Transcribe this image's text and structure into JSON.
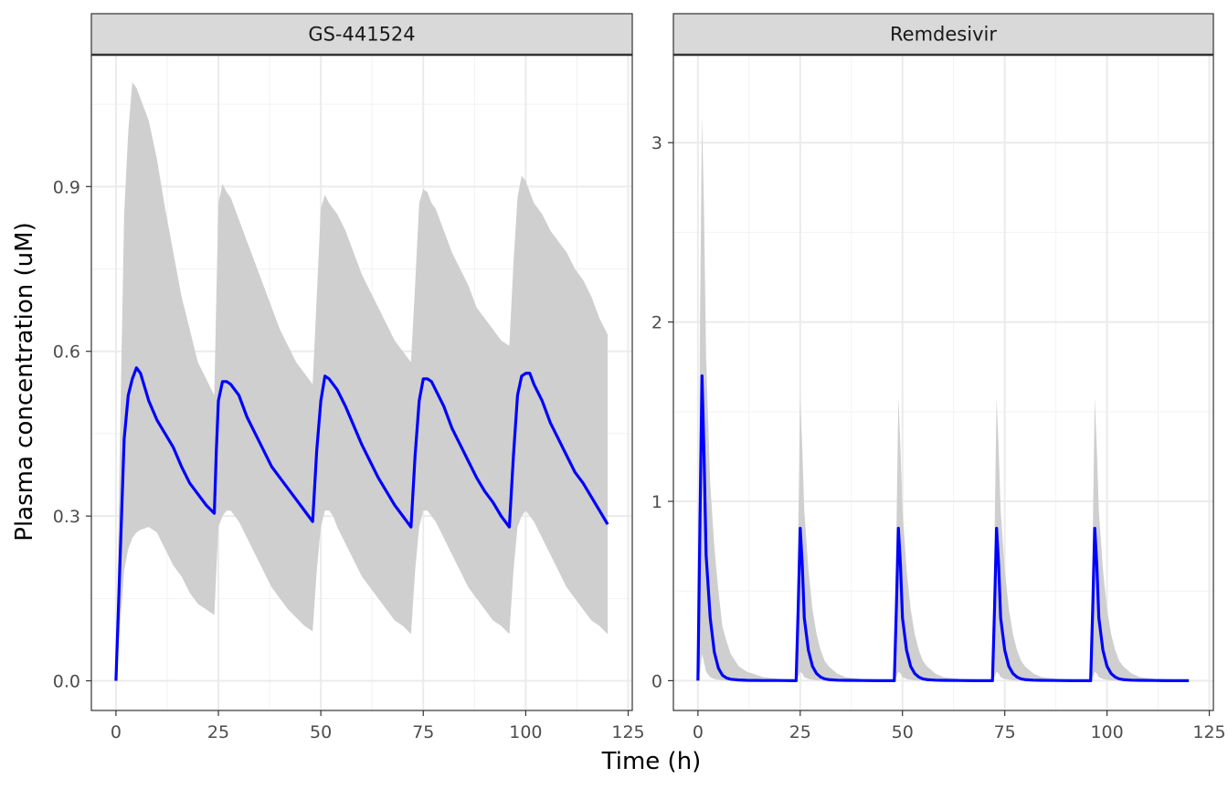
{
  "chart_data": {
    "type": "line",
    "xlabel": "Time (h)",
    "ylabel": "Plasma concentration (uM)",
    "grid": true,
    "legend": "none",
    "colors": {
      "line": "#0000ff",
      "ribbon": "#cfcfcf"
    },
    "panels": [
      {
        "title": "GS-441524",
        "xlim": [
          -6,
          126
        ],
        "ylim": [
          -0.054,
          1.14
        ],
        "x_ticks": [
          0,
          25,
          50,
          75,
          100,
          125
        ],
        "x_tick_labels": [
          "0",
          "25",
          "50",
          "75",
          "100",
          "125"
        ],
        "y_ticks": [
          0,
          0.3,
          0.6,
          0.9
        ],
        "y_tick_labels": [
          "0.0",
          "0.3",
          "0.6",
          "0.9"
        ],
        "series": [
          {
            "x": [
              0,
              1,
              2,
              3,
              4,
              5,
              6,
              8,
              10,
              12,
              14,
              16,
              18,
              20,
              22,
              24,
              24.5,
              25,
              26,
              27,
              28,
              29,
              30,
              32,
              34,
              36,
              38,
              40,
              42,
              44,
              46,
              48,
              49,
              50,
              51,
              52,
              53,
              54,
              56,
              58,
              60,
              62,
              64,
              66,
              68,
              70,
              72,
              73,
              74,
              75,
              76,
              77,
              78,
              80,
              82,
              84,
              86,
              88,
              90,
              92,
              94,
              96,
              97,
              98,
              99,
              100,
              101,
              102,
              104,
              106,
              108,
              110,
              112,
              114,
              116,
              118,
              120
            ],
            "y": [
              0.0,
              0.22,
              0.44,
              0.52,
              0.55,
              0.57,
              0.56,
              0.51,
              0.475,
              0.45,
              0.425,
              0.39,
              0.36,
              0.34,
              0.32,
              0.305,
              0.42,
              0.51,
              0.545,
              0.545,
              0.54,
              0.53,
              0.52,
              0.48,
              0.45,
              0.42,
              0.39,
              0.37,
              0.35,
              0.33,
              0.31,
              0.29,
              0.42,
              0.51,
              0.555,
              0.55,
              0.54,
              0.53,
              0.5,
              0.465,
              0.43,
              0.4,
              0.37,
              0.345,
              0.32,
              0.3,
              0.28,
              0.41,
              0.51,
              0.55,
              0.55,
              0.545,
              0.53,
              0.5,
              0.46,
              0.43,
              0.4,
              0.37,
              0.345,
              0.325,
              0.3,
              0.28,
              0.41,
              0.52,
              0.555,
              0.56,
              0.56,
              0.54,
              0.51,
              0.47,
              0.44,
              0.41,
              0.38,
              0.36,
              0.335,
              0.31,
              0.285
            ],
            "lower": [
              0.0,
              0.1,
              0.2,
              0.24,
              0.26,
              0.27,
              0.275,
              0.28,
              0.27,
              0.24,
              0.21,
              0.19,
              0.16,
              0.14,
              0.13,
              0.12,
              0.2,
              0.28,
              0.3,
              0.31,
              0.31,
              0.3,
              0.29,
              0.26,
              0.23,
              0.2,
              0.17,
              0.15,
              0.13,
              0.115,
              0.1,
              0.09,
              0.2,
              0.28,
              0.31,
              0.31,
              0.3,
              0.28,
              0.25,
              0.22,
              0.19,
              0.17,
              0.15,
              0.13,
              0.11,
              0.1,
              0.085,
              0.2,
              0.28,
              0.31,
              0.31,
              0.3,
              0.29,
              0.26,
              0.23,
              0.2,
              0.17,
              0.15,
              0.13,
              0.11,
              0.1,
              0.085,
              0.2,
              0.28,
              0.3,
              0.31,
              0.3,
              0.29,
              0.26,
              0.23,
              0.2,
              0.17,
              0.15,
              0.13,
              0.11,
              0.1,
              0.085
            ],
            "upper": [
              0.0,
              0.45,
              0.85,
              1.0,
              1.09,
              1.08,
              1.06,
              1.02,
              0.95,
              0.86,
              0.78,
              0.7,
              0.64,
              0.58,
              0.55,
              0.52,
              0.7,
              0.87,
              0.905,
              0.89,
              0.88,
              0.86,
              0.84,
              0.8,
              0.76,
              0.72,
              0.68,
              0.64,
              0.61,
              0.58,
              0.56,
              0.54,
              0.7,
              0.86,
              0.885,
              0.87,
              0.86,
              0.85,
              0.82,
              0.78,
              0.74,
              0.71,
              0.68,
              0.65,
              0.62,
              0.6,
              0.58,
              0.72,
              0.87,
              0.895,
              0.89,
              0.87,
              0.86,
              0.82,
              0.78,
              0.75,
              0.72,
              0.68,
              0.66,
              0.64,
              0.62,
              0.61,
              0.76,
              0.88,
              0.92,
              0.91,
              0.89,
              0.87,
              0.85,
              0.82,
              0.8,
              0.78,
              0.75,
              0.73,
              0.7,
              0.66,
              0.63
            ]
          }
        ]
      },
      {
        "title": "Remdesivir",
        "xlim": [
          -6,
          126
        ],
        "ylim": [
          -0.166,
          3.49
        ],
        "x_ticks": [
          0,
          25,
          50,
          75,
          100,
          125
        ],
        "x_tick_labels": [
          "0",
          "25",
          "50",
          "75",
          "100",
          "125"
        ],
        "y_ticks": [
          0,
          1,
          2,
          3
        ],
        "y_tick_labels": [
          "0",
          "1",
          "2",
          "3"
        ],
        "series": [
          {
            "x": [
              0,
              0.5,
              1,
              1.5,
              2,
              3,
              4,
              5,
              6,
              7,
              8,
              10,
              12,
              16,
              20,
              24,
              24.5,
              25,
              25.5,
              26,
              27,
              28,
              29,
              30,
              31,
              32,
              34,
              36,
              40,
              44,
              48,
              48.5,
              49,
              49.5,
              50,
              51,
              52,
              53,
              54,
              55,
              56,
              58,
              60,
              64,
              68,
              72,
              72.5,
              73,
              73.5,
              74,
              75,
              76,
              77,
              78,
              79,
              80,
              82,
              84,
              88,
              92,
              96,
              96.5,
              97,
              97.5,
              98,
              99,
              100,
              101,
              102,
              103,
              104,
              106,
              108,
              112,
              116,
              120
            ],
            "y": [
              0.0,
              0.9,
              1.7,
              1.25,
              0.7,
              0.35,
              0.16,
              0.07,
              0.03,
              0.015,
              0.008,
              0.004,
              0.002,
              0.001,
              0.001,
              0.0,
              0.4,
              0.85,
              0.65,
              0.35,
              0.17,
              0.08,
              0.04,
              0.02,
              0.01,
              0.006,
              0.003,
              0.002,
              0.001,
              0.0,
              0.0,
              0.4,
              0.85,
              0.65,
              0.35,
              0.17,
              0.08,
              0.04,
              0.02,
              0.01,
              0.006,
              0.003,
              0.002,
              0.001,
              0.0,
              0.0,
              0.4,
              0.85,
              0.65,
              0.35,
              0.17,
              0.08,
              0.04,
              0.02,
              0.01,
              0.006,
              0.003,
              0.002,
              0.001,
              0.0,
              0.0,
              0.4,
              0.85,
              0.65,
              0.35,
              0.17,
              0.08,
              0.04,
              0.02,
              0.01,
              0.006,
              0.003,
              0.002,
              0.001,
              0.0,
              0.0
            ],
            "lower": [
              0.0,
              0.05,
              0.15,
              0.1,
              0.05,
              0.02,
              0.01,
              0.005,
              0.002,
              0.001,
              0.0,
              0.0,
              0.0,
              0.0,
              0.0,
              0.0,
              0.02,
              0.05,
              0.04,
              0.02,
              0.01,
              0.005,
              0.002,
              0.001,
              0.0,
              0.0,
              0.0,
              0.0,
              0.0,
              0.0,
              0.0,
              0.02,
              0.05,
              0.04,
              0.02,
              0.01,
              0.005,
              0.002,
              0.001,
              0.0,
              0.0,
              0.0,
              0.0,
              0.0,
              0.0,
              0.0,
              0.02,
              0.05,
              0.04,
              0.02,
              0.01,
              0.005,
              0.002,
              0.001,
              0.0,
              0.0,
              0.0,
              0.0,
              0.0,
              0.0,
              0.0,
              0.02,
              0.05,
              0.04,
              0.02,
              0.01,
              0.005,
              0.002,
              0.001,
              0.0,
              0.0,
              0.0,
              0.0,
              0.0,
              0.0,
              0.0
            ],
            "upper": [
              0.0,
              2.0,
              3.15,
              2.6,
              1.8,
              1.1,
              0.75,
              0.5,
              0.3,
              0.22,
              0.15,
              0.08,
              0.05,
              0.02,
              0.01,
              0.005,
              0.8,
              1.58,
              1.3,
              0.95,
              0.62,
              0.4,
              0.26,
              0.17,
              0.11,
              0.08,
              0.04,
              0.02,
              0.01,
              0.005,
              0.005,
              0.8,
              1.58,
              1.3,
              0.95,
              0.62,
              0.4,
              0.26,
              0.17,
              0.11,
              0.08,
              0.04,
              0.02,
              0.01,
              0.005,
              0.005,
              0.8,
              1.58,
              1.3,
              0.95,
              0.62,
              0.4,
              0.26,
              0.17,
              0.11,
              0.08,
              0.04,
              0.02,
              0.01,
              0.005,
              0.005,
              0.8,
              1.58,
              1.3,
              0.95,
              0.62,
              0.4,
              0.26,
              0.17,
              0.11,
              0.08,
              0.04,
              0.02,
              0.01,
              0.005,
              0.0
            ]
          }
        ]
      }
    ]
  }
}
